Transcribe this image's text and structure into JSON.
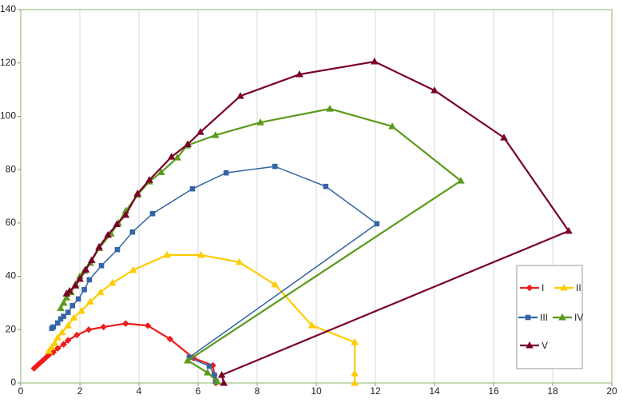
{
  "chart_data": {
    "type": "line",
    "xlim": [
      0,
      20
    ],
    "xticks": [
      0,
      2,
      4,
      6,
      8,
      10,
      12,
      14,
      16,
      18,
      20
    ],
    "ylim": [
      0,
      140
    ],
    "yticks": [
      0,
      20,
      40,
      60,
      80,
      100,
      120,
      140
    ],
    "grid": "x",
    "legend": "right",
    "series": [
      {
        "name": "I",
        "color": "#ee1c1c",
        "marker": "diamond",
        "x": [
          0.45,
          0.55,
          0.65,
          0.75,
          0.85,
          0.95,
          1.1,
          1.25,
          1.45,
          1.6,
          1.9,
          2.3,
          2.8,
          3.55,
          4.3,
          5.05,
          5.85,
          6.5,
          6.55,
          6.6,
          6.6
        ],
        "values": [
          5.5,
          6.5,
          7.5,
          8.5,
          9.5,
          10.5,
          11.5,
          13,
          14.5,
          16,
          18,
          20,
          21,
          22.3,
          21.5,
          16.5,
          9.3,
          6.6,
          3,
          1,
          0
        ]
      },
      {
        "name": "II",
        "color": "#ffcc00",
        "marker": "triangle",
        "x": [
          0.95,
          1.05,
          1.15,
          1.25,
          1.4,
          1.6,
          1.8,
          2.05,
          2.35,
          2.7,
          3.1,
          3.8,
          4.95,
          6.1,
          7.4,
          8.6,
          9.85,
          11.3,
          11.3,
          11.3
        ],
        "values": [
          12,
          13.5,
          15,
          17,
          19,
          21.5,
          24.5,
          27,
          30.5,
          34,
          37.5,
          42.3,
          48,
          48,
          45.3,
          36.9,
          21.6,
          15.3,
          3.6,
          0
        ]
      },
      {
        "name": "III",
        "color": "#3465a4",
        "marker": "square",
        "x": [
          1.05,
          1.1,
          1.25,
          1.35,
          1.45,
          1.6,
          1.75,
          1.95,
          2.15,
          2.32,
          2.73,
          3.27,
          3.78,
          4.46,
          5.81,
          6.95,
          8.6,
          10.32,
          12.05,
          5.7,
          6.38,
          6.55,
          6.6
        ],
        "values": [
          20.5,
          21,
          22.5,
          24,
          25,
          26.5,
          29,
          31.5,
          35,
          38.7,
          44,
          50,
          56.6,
          63.5,
          72.8,
          78.8,
          81.2,
          73.7,
          59.7,
          9.6,
          6.3,
          3,
          0.5
        ]
      },
      {
        "name": "IV",
        "color": "#5b9a1c",
        "marker": "triangle",
        "x": [
          1.35,
          1.45,
          1.55,
          1.7,
          1.85,
          2.0,
          2.15,
          2.35,
          2.65,
          3.05,
          3.3,
          3.55,
          3.95,
          4.35,
          4.75,
          5.3,
          5.62,
          6.59,
          8.11,
          10.46,
          12.57,
          14.89,
          5.65,
          6.32,
          6.65
        ],
        "values": [
          28,
          30,
          32,
          34,
          37,
          40,
          42,
          45,
          50.5,
          56,
          60,
          64.5,
          70.5,
          75.5,
          79,
          84.5,
          89,
          92.9,
          97.7,
          102.8,
          96.2,
          75.8,
          8.4,
          3.9,
          0.5
        ]
      },
      {
        "name": "V",
        "color": "#7a0026",
        "marker": "triangle",
        "x": [
          1.55,
          1.65,
          1.85,
          2.0,
          2.2,
          2.4,
          2.65,
          2.95,
          3.25,
          3.55,
          3.95,
          4.35,
          5.1,
          5.65,
          6.08,
          7.43,
          9.43,
          11.97,
          14.0,
          16.35,
          18.54,
          6.8,
          6.87
        ],
        "values": [
          33.5,
          34.5,
          36.5,
          39,
          42.5,
          46,
          51,
          55.5,
          59.5,
          63,
          71,
          76.1,
          84.8,
          89.5,
          94.1,
          107.6,
          115.7,
          120.5,
          109.7,
          92,
          57,
          3,
          0
        ]
      }
    ]
  }
}
